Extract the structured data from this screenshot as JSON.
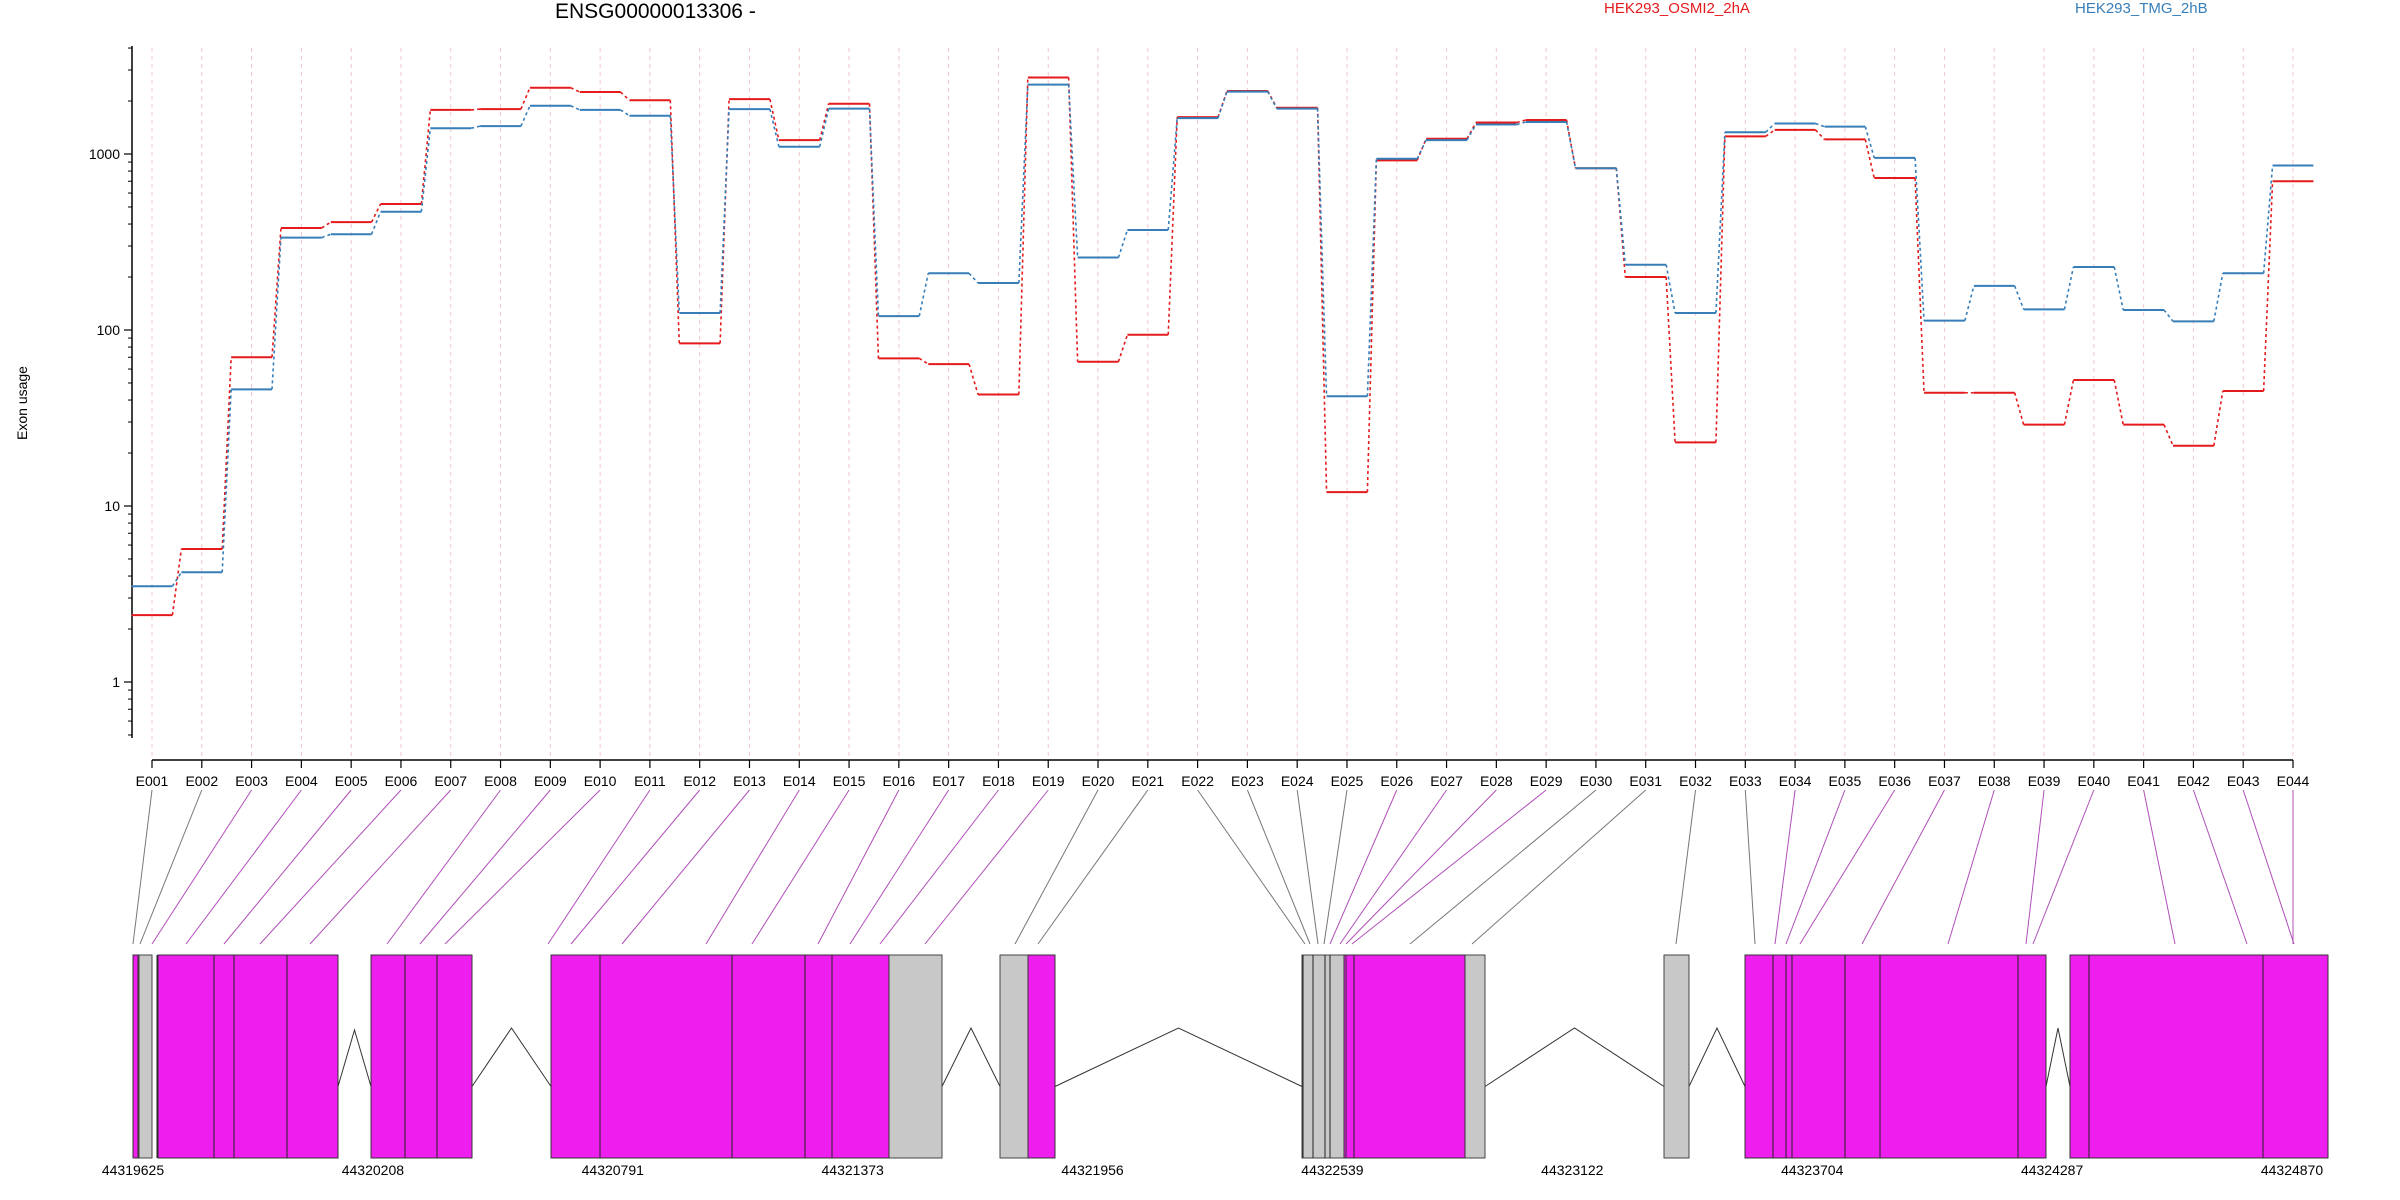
{
  "chart_data": {
    "type": "line",
    "title": "ENSG00000013306 -",
    "ylabel": "Exon usage",
    "yscale": "log",
    "ylim": [
      0.5,
      4000
    ],
    "yticks": [
      1,
      10,
      100,
      1000
    ],
    "categories": [
      "E001",
      "E002",
      "E003",
      "E004",
      "E005",
      "E006",
      "E007",
      "E008",
      "E009",
      "E010",
      "E011",
      "E012",
      "E013",
      "E014",
      "E015",
      "E016",
      "E017",
      "E018",
      "E019",
      "E020",
      "E021",
      "E022",
      "E023",
      "E024",
      "E025",
      "E026",
      "E027",
      "E028",
      "E029",
      "E030",
      "E031",
      "E032",
      "E033",
      "E034",
      "E035",
      "E036",
      "E037",
      "E038",
      "E039",
      "E040",
      "E041",
      "E042",
      "E043",
      "E044"
    ],
    "series": [
      {
        "name": "HEK293_OSMI2_2hA",
        "color": "#e41a1c",
        "values": [
          2.4,
          5.7,
          70,
          380,
          410,
          520,
          1780,
          1800,
          2380,
          2250,
          2020,
          84,
          2050,
          1200,
          1930,
          69,
          64,
          43,
          2720,
          66,
          94,
          1620,
          2280,
          1830,
          12,
          920,
          1220,
          1510,
          1560,
          830,
          200,
          23,
          1260,
          1370,
          1210,
          730,
          44,
          44,
          29,
          52,
          29,
          22,
          45,
          700
        ]
      },
      {
        "name": "HEK293_TMG_2hB",
        "color": "#377eb8",
        "values": [
          3.5,
          4.2,
          46,
          335,
          350,
          470,
          1400,
          1440,
          1880,
          1780,
          1650,
          125,
          1800,
          1100,
          1810,
          120,
          210,
          185,
          2480,
          258,
          370,
          1600,
          2260,
          1810,
          42,
          940,
          1200,
          1470,
          1520,
          830,
          235,
          125,
          1330,
          1490,
          1430,
          950,
          113,
          178,
          131,
          228,
          130,
          112,
          210,
          860
        ]
      }
    ],
    "genome_ticks": [
      "44319625",
      "44320208",
      "44320791",
      "44321373",
      "44321956",
      "44322539",
      "44323122",
      "44323704",
      "44324287",
      "44324870"
    ],
    "gene_model": {
      "exon_color": "#ee1eee",
      "noncoding_color": "#c8c8c8"
    }
  }
}
